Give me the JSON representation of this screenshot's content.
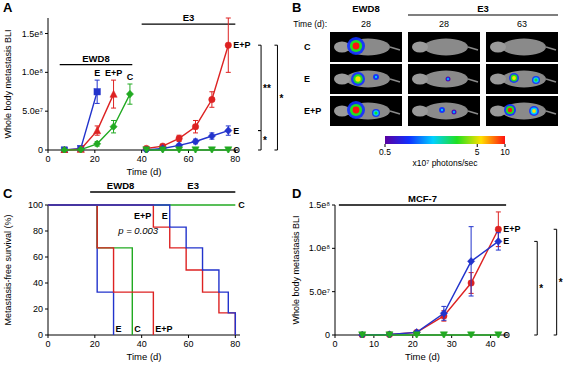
{
  "chart_data": [
    {
      "title": "A",
      "type": "line",
      "x_label": "Time (d)",
      "y_label": "Whole body metastasis BLI",
      "xlim": [
        0,
        82
      ],
      "xticks": [
        0,
        20,
        40,
        60,
        80
      ],
      "ylim": [
        0,
        170000000
      ],
      "yticks": [
        0,
        {
          "value": 50000000,
          "label": "5.0e⁷"
        },
        {
          "value": 100000000,
          "label": "1.0e⁸"
        },
        {
          "value": 150000000,
          "label": "1.5e⁸"
        }
      ],
      "groups": [
        {
          "label": "EWD8",
          "x": [
            5,
            36
          ],
          "y": 110000000
        },
        {
          "label": "E3",
          "x": [
            40,
            80
          ],
          "y": 162000000
        }
      ],
      "series": [
        {
          "name": "E",
          "color": "#2233cc",
          "marker": "square",
          "x": [
            7,
            14,
            21
          ],
          "values": [
            0,
            2000000,
            75000000
          ],
          "errors": [
            0,
            1000000,
            15000000
          ]
        },
        {
          "name": "E+P",
          "color": "#dd2222",
          "marker": "triangle",
          "x": [
            7,
            14,
            21,
            28
          ],
          "values": [
            0,
            1000000,
            25000000,
            72000000
          ],
          "errors": [
            0,
            500000,
            6000000,
            18000000
          ]
        },
        {
          "name": "C",
          "color": "#22aa22",
          "marker": "diamond",
          "x": [
            7,
            14,
            21,
            28,
            35
          ],
          "values": [
            0,
            500000,
            8000000,
            30000000,
            72000000
          ],
          "errors": [
            0,
            300000,
            3000000,
            8000000,
            13000000
          ]
        },
        {
          "name": "E+P",
          "color": "#dd2222",
          "marker": "circle",
          "x": [
            42,
            49,
            56,
            63,
            70,
            77
          ],
          "values": [
            2000000,
            5000000,
            15000000,
            30000000,
            65000000,
            135000000
          ],
          "errors": [
            500000,
            1500000,
            4000000,
            8000000,
            10000000,
            35000000
          ]
        },
        {
          "name": "E",
          "color": "#2233cc",
          "marker": "diamond",
          "x": [
            42,
            49,
            56,
            63,
            70,
            77
          ],
          "values": [
            0,
            2000000,
            6000000,
            11000000,
            18000000,
            25000000
          ],
          "errors": [
            0,
            500000,
            1500000,
            3000000,
            4000000,
            6000000
          ]
        },
        {
          "name": "C",
          "color": "#22aa22",
          "marker": "triangle-down",
          "x": [
            42,
            49,
            56,
            63,
            70,
            77
          ],
          "values": [
            0,
            0,
            0,
            0,
            0,
            0
          ],
          "errors": [
            0,
            0,
            0,
            0,
            0,
            0
          ]
        }
      ],
      "annotations": [
        {
          "text": "**",
          "x": 91,
          "y": [
            135000000,
            25000000
          ]
        },
        {
          "text": "*",
          "x": 91,
          "y": [
            25000000,
            0
          ]
        },
        {
          "text": "*",
          "x": 98,
          "y": [
            135000000,
            0
          ]
        }
      ]
    },
    {
      "title": "C",
      "type": "step",
      "x_label": "Time (d)",
      "y_label": "Metastasis-free survival (%)",
      "xlim": [
        0,
        82
      ],
      "xticks": [
        0,
        20,
        40,
        60,
        80
      ],
      "ylim": [
        0,
        100
      ],
      "yticks": [
        0,
        20,
        40,
        60,
        80,
        100
      ],
      "groups": [
        {
          "label": "EWD8",
          "x": [
            18,
            44
          ],
          "y": 110
        },
        {
          "label": "E3",
          "x": [
            44,
            80
          ],
          "y": 110
        }
      ],
      "series": [
        {
          "name": "E",
          "group": "EWD8",
          "color": "#2233cc",
          "x": [
            0,
            21,
            28
          ],
          "values": [
            100,
            33,
            0
          ]
        },
        {
          "name": "C",
          "group": "EWD8",
          "color": "#22aa22",
          "x": [
            0,
            21,
            36
          ],
          "values": [
            100,
            67,
            0
          ]
        },
        {
          "name": "E+P",
          "group": "EWD8",
          "color": "#dd2222",
          "x": [
            0,
            21,
            28,
            45
          ],
          "values": [
            100,
            67,
            33,
            0
          ]
        },
        {
          "name": "C",
          "group": "E3",
          "color": "#22aa22",
          "x": [
            0,
            80
          ],
          "values": [
            100,
            100
          ]
        },
        {
          "name": "E+P",
          "group": "E3",
          "color": "#dd2222",
          "x": [
            0,
            45,
            52,
            59,
            66,
            73,
            80
          ],
          "values": [
            100,
            83,
            67,
            50,
            33,
            17,
            0
          ]
        },
        {
          "name": "E",
          "group": "E3",
          "color": "#2233cc",
          "x": [
            0,
            52,
            59,
            66,
            73,
            77,
            80
          ],
          "values": [
            100,
            83,
            67,
            50,
            33,
            17,
            0
          ]
        }
      ],
      "annotations": [
        {
          "text": "p = 0.003",
          "x": 30,
          "y": 78
        }
      ]
    },
    {
      "title": "D",
      "type": "line",
      "x_label": "Time (d)",
      "y_label": "Whole body metastasis BLI",
      "xlim": [
        0,
        45
      ],
      "xticks": [
        0,
        10,
        20,
        30,
        40
      ],
      "ylim": [
        0,
        150000000
      ],
      "yticks": [
        0,
        {
          "value": 50000000,
          "label": "5.0e⁷"
        },
        {
          "value": 100000000,
          "label": "1.0e⁸"
        },
        {
          "value": 150000000,
          "label": "1.5e⁸"
        }
      ],
      "groups": [
        {
          "label": "MCF-7",
          "x": [
            1,
            44
          ],
          "y": 150000000
        }
      ],
      "series": [
        {
          "name": "E+P",
          "color": "#dd2222",
          "marker": "circle",
          "x": [
            7,
            14,
            21,
            28,
            35,
            42
          ],
          "values": [
            0,
            500000,
            3000000,
            22000000,
            60000000,
            122000000
          ],
          "errors": [
            0,
            200000,
            1000000,
            6000000,
            12000000,
            20000000
          ]
        },
        {
          "name": "E",
          "color": "#2233cc",
          "marker": "diamond",
          "x": [
            7,
            14,
            21,
            28,
            35,
            42
          ],
          "values": [
            0,
            500000,
            3000000,
            25000000,
            85000000,
            108000000
          ],
          "errors": [
            0,
            200000,
            1000000,
            8000000,
            40000000,
            10000000
          ]
        },
        {
          "name": "C",
          "color": "#22aa22",
          "marker": "triangle-down",
          "x": [
            7,
            14,
            21,
            28,
            35,
            42
          ],
          "values": [
            0,
            0,
            0,
            0,
            0,
            0
          ],
          "errors": [
            0,
            0,
            0,
            0,
            0,
            0
          ]
        }
      ],
      "annotations": [
        {
          "text": "*",
          "x": 52,
          "y": [
            108000000,
            0
          ]
        },
        {
          "text": "*",
          "x": 57,
          "y": [
            122000000,
            0
          ]
        }
      ]
    }
  ],
  "panel_b": {
    "title": "B",
    "groups": [
      {
        "label": "EWD8",
        "times": [
          28
        ]
      },
      {
        "label": "E3",
        "times": [
          28,
          63
        ]
      }
    ],
    "time_label": "Time (d):",
    "rows": [
      "C",
      "E",
      "E+P"
    ],
    "colorbar": {
      "label": "x10⁷ photons/sec",
      "range": [
        0.5,
        10
      ],
      "ticks": [
        0.5,
        5,
        10
      ],
      "log": true
    }
  }
}
